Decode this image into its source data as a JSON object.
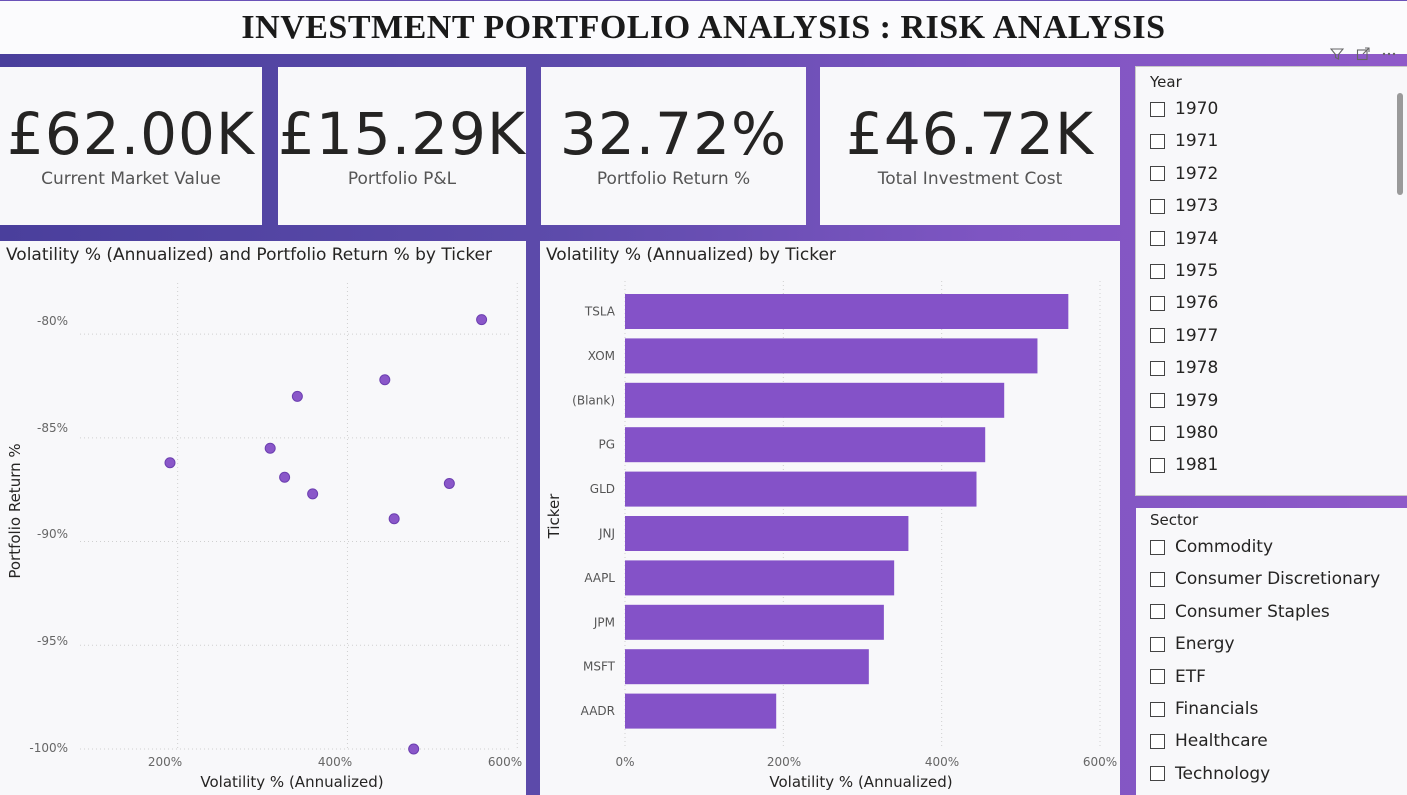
{
  "title": "INVESTMENT PORTFOLIO ANALYSIS : RISK ANALYSIS",
  "kpis": [
    {
      "value": "£62.00K",
      "label": "Current Market Value"
    },
    {
      "value": "£15.29K",
      "label": "Portfolio P&L"
    },
    {
      "value": "32.72%",
      "label": "Portfolio Return %"
    },
    {
      "value": "£46.72K",
      "label": "Total Investment Cost"
    }
  ],
  "scatter": {
    "title": "Volatility % (Annualized) and Portfolio Return % by Ticker",
    "xlabel": "Volatility % (Annualized)",
    "ylabel": "Portfolio Return %",
    "x_ticks": [
      "200%",
      "400%",
      "600%"
    ],
    "y_ticks": [
      "-80%",
      "-85%",
      "-90%",
      "-95%",
      "-100%"
    ]
  },
  "bar": {
    "title": "Volatility % (Annualized) by Ticker",
    "xlabel": "Volatility % (Annualized)",
    "ylabel": "Ticker",
    "x_ticks": [
      "0%",
      "200%",
      "400%",
      "600%"
    ]
  },
  "chart_data": [
    {
      "type": "scatter",
      "title": "Volatility % (Annualized) and Portfolio Return % by Ticker",
      "xlabel": "Volatility % (Annualized)",
      "ylabel": "Portfolio Return %",
      "xlim": [
        85,
        615
      ],
      "ylim": [
        -100,
        -78.5
      ],
      "points": [
        {
          "x": 191,
          "y": -86.2
        },
        {
          "x": 309,
          "y": -85.5
        },
        {
          "x": 326,
          "y": -86.9
        },
        {
          "x": 341,
          "y": -83.0
        },
        {
          "x": 359,
          "y": -87.7
        },
        {
          "x": 444,
          "y": -82.2
        },
        {
          "x": 455,
          "y": -88.9
        },
        {
          "x": 478,
          "y": -100.0
        },
        {
          "x": 520,
          "y": -87.2
        },
        {
          "x": 558,
          "y": -79.3
        }
      ],
      "grid": true
    },
    {
      "type": "bar",
      "orientation": "horizontal",
      "title": "Volatility % (Annualized) by Ticker",
      "xlabel": "Volatility % (Annualized)",
      "ylabel": "Ticker",
      "categories": [
        "TSLA",
        "XOM",
        "(Blank)",
        "PG",
        "GLD",
        "JNJ",
        "AAPL",
        "JPM",
        "MSFT",
        "AADR"
      ],
      "values": [
        560,
        521,
        479,
        455,
        444,
        358,
        340,
        327,
        308,
        191
      ],
      "xlim": [
        0,
        600
      ],
      "color": "#8452c8",
      "grid": true
    }
  ],
  "year_slicer": {
    "title": "Year",
    "items": [
      "1970",
      "1971",
      "1972",
      "1973",
      "1974",
      "1975",
      "1976",
      "1977",
      "1978",
      "1979",
      "1980",
      "1981"
    ]
  },
  "sector_slicer": {
    "title": "Sector",
    "items": [
      "Commodity",
      "Consumer Discretionary",
      "Consumer Staples",
      "Energy",
      "ETF",
      "Financials",
      "Healthcare",
      "Technology"
    ]
  },
  "icons": [
    "filter-icon",
    "focus-mode-icon",
    "more-options-icon"
  ],
  "colors": {
    "accent": "#8452c8",
    "band_start": "#4a3f9c",
    "band_end": "#8f5ac9"
  }
}
